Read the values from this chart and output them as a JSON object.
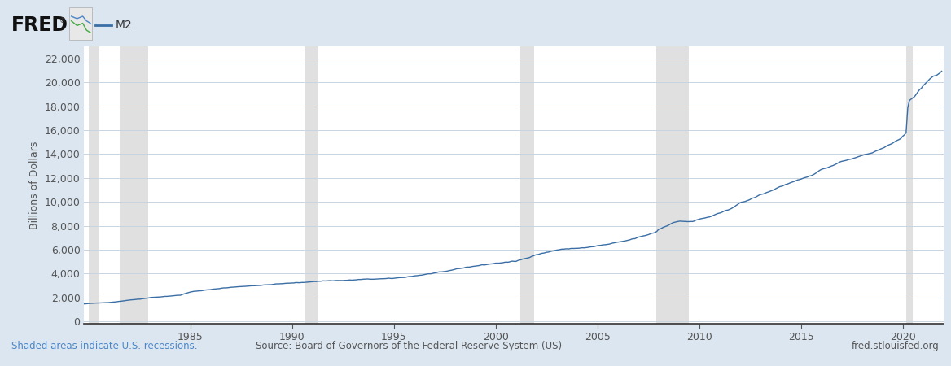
{
  "title": "M2",
  "ylabel": "Billions of Dollars",
  "yticks": [
    0,
    2000,
    4000,
    6000,
    8000,
    10000,
    12000,
    14000,
    16000,
    18000,
    20000,
    22000
  ],
  "ylim": [
    -200,
    23000
  ],
  "xlim": [
    1979.75,
    2022.0
  ],
  "xticks": [
    1985,
    1990,
    1995,
    2000,
    2005,
    2010,
    2015,
    2020
  ],
  "line_color": "#3a6ea5",
  "line_width": 1.0,
  "bg_color": "#dce6f0",
  "plot_bg_color": "#ffffff",
  "grid_color": "#c8d4e0",
  "recession_color": "#e0e0e0",
  "recession_alpha": 1.0,
  "recessions": [
    [
      1980.0,
      1980.5
    ],
    [
      1981.5,
      1982.9
    ],
    [
      1990.6,
      1991.3
    ],
    [
      2001.2,
      2001.9
    ],
    [
      2007.9,
      2009.5
    ],
    [
      2020.17,
      2020.5
    ]
  ],
  "legend_label": "M2",
  "footer_left": "Shaded areas indicate U.S. recessions.",
  "footer_center": "Source: Board of Governors of the Federal Reserve System (US)",
  "footer_right": "fred.stlouisfed.org",
  "footer_color": "#4a86c8",
  "footer_center_color": "#555555",
  "footer_right_color": "#555555",
  "waypoints": [
    [
      1979.75,
      1470
    ],
    [
      1980.0,
      1500
    ],
    [
      1980.5,
      1550
    ],
    [
      1981.0,
      1600
    ],
    [
      1981.5,
      1680
    ],
    [
      1982.0,
      1800
    ],
    [
      1982.5,
      1870
    ],
    [
      1983.0,
      2000
    ],
    [
      1983.5,
      2060
    ],
    [
      1984.0,
      2130
    ],
    [
      1984.5,
      2200
    ],
    [
      1985.0,
      2480
    ],
    [
      1985.5,
      2570
    ],
    [
      1986.0,
      2680
    ],
    [
      1986.5,
      2780
    ],
    [
      1987.0,
      2860
    ],
    [
      1987.5,
      2930
    ],
    [
      1988.0,
      2990
    ],
    [
      1988.5,
      3030
    ],
    [
      1989.0,
      3100
    ],
    [
      1989.5,
      3170
    ],
    [
      1990.0,
      3220
    ],
    [
      1990.5,
      3270
    ],
    [
      1991.0,
      3330
    ],
    [
      1991.5,
      3390
    ],
    [
      1992.0,
      3420
    ],
    [
      1992.5,
      3430
    ],
    [
      1993.0,
      3470
    ],
    [
      1993.5,
      3530
    ],
    [
      1994.0,
      3550
    ],
    [
      1994.5,
      3570
    ],
    [
      1995.0,
      3620
    ],
    [
      1995.5,
      3700
    ],
    [
      1996.0,
      3810
    ],
    [
      1996.5,
      3920
    ],
    [
      1997.0,
      4060
    ],
    [
      1997.5,
      4170
    ],
    [
      1998.0,
      4370
    ],
    [
      1998.5,
      4520
    ],
    [
      1999.0,
      4640
    ],
    [
      1999.5,
      4760
    ],
    [
      2000.0,
      4870
    ],
    [
      2000.5,
      4950
    ],
    [
      2001.0,
      5050
    ],
    [
      2001.5,
      5300
    ],
    [
      2002.0,
      5590
    ],
    [
      2002.5,
      5780
    ],
    [
      2003.0,
      5980
    ],
    [
      2003.5,
      6080
    ],
    [
      2004.0,
      6130
    ],
    [
      2004.5,
      6180
    ],
    [
      2005.0,
      6330
    ],
    [
      2005.5,
      6450
    ],
    [
      2006.0,
      6620
    ],
    [
      2006.5,
      6790
    ],
    [
      2007.0,
      7030
    ],
    [
      2007.5,
      7270
    ],
    [
      2007.9,
      7500
    ],
    [
      2008.0,
      7700
    ],
    [
      2008.3,
      7920
    ],
    [
      2008.5,
      8070
    ],
    [
      2008.7,
      8300
    ],
    [
      2009.0,
      8360
    ],
    [
      2009.3,
      8380
    ],
    [
      2009.5,
      8360
    ],
    [
      2009.7,
      8370
    ],
    [
      2010.0,
      8550
    ],
    [
      2010.5,
      8750
    ],
    [
      2011.0,
      9050
    ],
    [
      2011.5,
      9400
    ],
    [
      2012.0,
      9900
    ],
    [
      2012.5,
      10200
    ],
    [
      2013.0,
      10600
    ],
    [
      2013.5,
      10900
    ],
    [
      2014.0,
      11300
    ],
    [
      2014.5,
      11600
    ],
    [
      2015.0,
      11900
    ],
    [
      2015.5,
      12200
    ],
    [
      2016.0,
      12700
    ],
    [
      2016.5,
      13000
    ],
    [
      2017.0,
      13400
    ],
    [
      2017.5,
      13600
    ],
    [
      2018.0,
      13900
    ],
    [
      2018.5,
      14100
    ],
    [
      2019.0,
      14500
    ],
    [
      2019.5,
      14900
    ],
    [
      2019.9,
      15300
    ],
    [
      2020.0,
      15500
    ],
    [
      2020.08,
      15600
    ],
    [
      2020.17,
      15800
    ],
    [
      2020.25,
      17900
    ],
    [
      2020.33,
      18500
    ],
    [
      2020.42,
      18600
    ],
    [
      2020.5,
      18700
    ],
    [
      2020.58,
      18800
    ],
    [
      2020.67,
      19000
    ],
    [
      2020.75,
      19200
    ],
    [
      2020.83,
      19400
    ],
    [
      2020.92,
      19500
    ],
    [
      2021.0,
      19700
    ],
    [
      2021.17,
      20000
    ],
    [
      2021.33,
      20300
    ],
    [
      2021.5,
      20500
    ],
    [
      2021.67,
      20600
    ],
    [
      2021.83,
      20800
    ],
    [
      2021.95,
      21000
    ]
  ]
}
